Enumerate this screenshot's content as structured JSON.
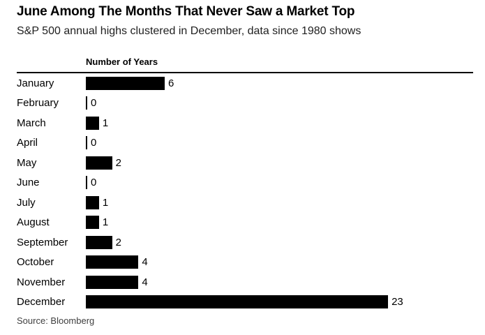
{
  "header": {
    "title": "June Among The Months That Never Saw a Market Top",
    "subtitle": "S&P 500 annual highs clustered in December, data since 1980 shows"
  },
  "chart_data": {
    "type": "bar",
    "orientation": "horizontal",
    "title": "June Among The Months That Never Saw a Market Top",
    "subtitle": "S&P 500 annual highs clustered in December, data since 1980 shows",
    "axis_title": "Number of Years",
    "categories": [
      "January",
      "February",
      "March",
      "April",
      "May",
      "June",
      "July",
      "August",
      "September",
      "October",
      "November",
      "December"
    ],
    "values": [
      6,
      0,
      1,
      0,
      2,
      0,
      1,
      1,
      2,
      4,
      4,
      23
    ],
    "xlim": [
      0,
      23
    ],
    "value_labels_shown": true,
    "grid": false,
    "legend": false,
    "bar_color": "#000000",
    "rule_color": "#000000",
    "text_color": "#000000",
    "source_text_color": "#404040"
  },
  "footer": {
    "source": "Source: Bloomberg"
  }
}
